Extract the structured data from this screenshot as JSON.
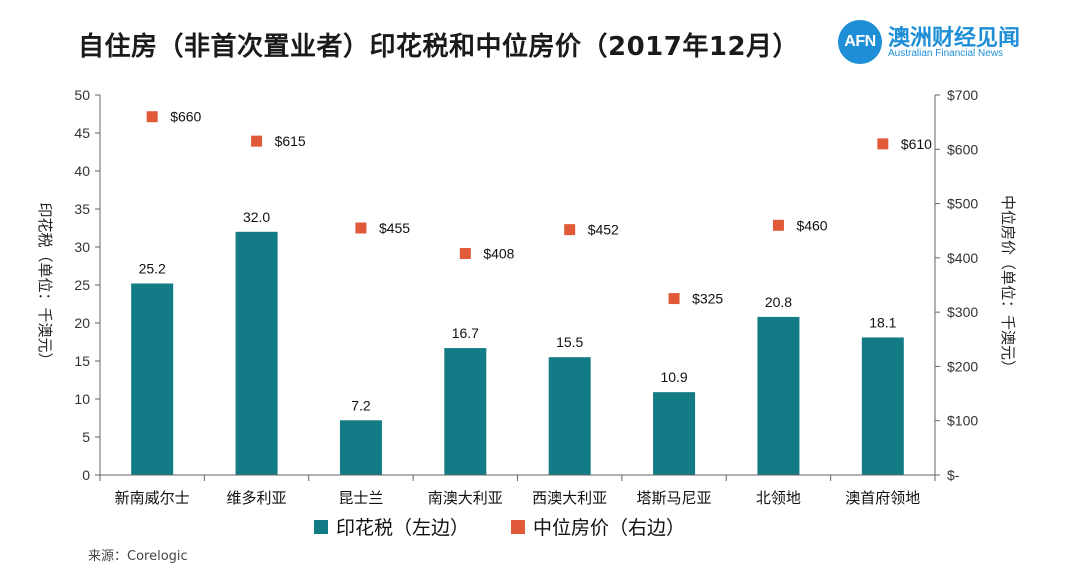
{
  "title": "自住房（非首次置业者）印花税和中位房价（2017年12月）",
  "logo": {
    "badge": "AFN",
    "name_cn": "澳洲财经见闻",
    "name_en": "Australian Financial News"
  },
  "source": "来源：Corelogic",
  "colors": {
    "bar": "#137b85",
    "marker": "#e05a3a",
    "axis": "#666666",
    "brand": "#1e8fd6"
  },
  "chart_data": {
    "type": "bar",
    "title": "自住房（非首次置业者）印花税和中位房价（2017年12月）",
    "categories": [
      "新南威尔士",
      "维多利亚",
      "昆士兰",
      "南澳大利亚",
      "西澳大利亚",
      "塔斯马尼亚",
      "北领地",
      "澳首府领地"
    ],
    "series": [
      {
        "name": "印花税（左边）",
        "axis": "left",
        "kind": "bar",
        "values": [
          25.2,
          32.0,
          7.2,
          16.7,
          15.5,
          10.9,
          20.8,
          18.1
        ],
        "labels": [
          "25.2",
          "32.0",
          "7.2",
          "16.7",
          "15.5",
          "10.9",
          "20.8",
          "18.1"
        ]
      },
      {
        "name": "中位房价（右边）",
        "axis": "right",
        "kind": "scatter",
        "values": [
          660,
          615,
          455,
          408,
          452,
          325,
          460,
          610
        ],
        "labels": [
          "$660",
          "$615",
          "$455",
          "$408",
          "$452",
          "$325",
          "$460",
          "$610"
        ]
      }
    ],
    "ylabel": "印花税（单位：千澳元）",
    "y2label": "中位房价（单位：千澳元）",
    "ylim": [
      0,
      50
    ],
    "y2lim": [
      0,
      700
    ],
    "yticks": [
      "0",
      "5",
      "10",
      "15",
      "20",
      "25",
      "30",
      "35",
      "40",
      "45",
      "50"
    ],
    "y2ticks": [
      "$-",
      "$100",
      "$200",
      "$300",
      "$400",
      "$500",
      "$600",
      "$700"
    ],
    "legend": [
      "印花税（左边）",
      "中位房价（右边）"
    ]
  }
}
